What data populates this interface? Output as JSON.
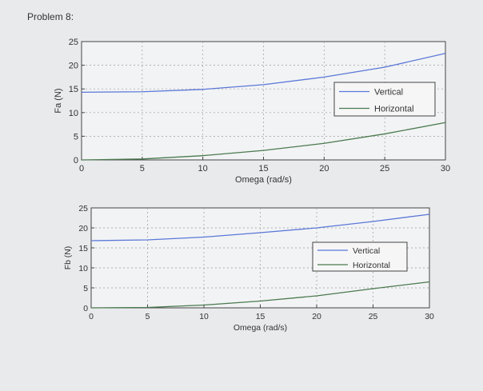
{
  "page": {
    "heading": "Problem 8:"
  },
  "chart_data": [
    {
      "type": "line",
      "ylabel": "Fa (N)",
      "xlabel": "Omega (rad/s)",
      "xlim": [
        0,
        30
      ],
      "ylim": [
        0,
        25
      ],
      "xticks": [
        0,
        5,
        10,
        15,
        20,
        25,
        30
      ],
      "yticks": [
        0,
        5,
        10,
        15,
        20,
        25
      ],
      "grid": true,
      "legend_position": "right",
      "x": [
        0,
        5,
        10,
        15,
        20,
        25,
        30
      ],
      "series": [
        {
          "name": "Vertical",
          "color": "#5a78d8",
          "values": [
            14.3,
            14.4,
            14.9,
            15.9,
            17.5,
            19.6,
            22.5
          ]
        },
        {
          "name": "Horizontal",
          "color": "#4a7a4e",
          "values": [
            0.0,
            0.2,
            0.9,
            2.0,
            3.5,
            5.5,
            7.9
          ]
        }
      ]
    },
    {
      "type": "line",
      "ylabel": "Fb (N)",
      "xlabel": "Omega (rad/s)",
      "xlim": [
        0,
        30
      ],
      "ylim": [
        0,
        25
      ],
      "xticks": [
        0,
        5,
        10,
        15,
        20,
        25,
        30
      ],
      "yticks": [
        0,
        5,
        10,
        15,
        20,
        25
      ],
      "grid": true,
      "legend_position": "right",
      "x": [
        0,
        5,
        10,
        15,
        20,
        25,
        30
      ],
      "series": [
        {
          "name": "Vertical",
          "color": "#5a78d8",
          "values": [
            16.8,
            17.0,
            17.7,
            18.8,
            20.0,
            21.6,
            23.4
          ]
        },
        {
          "name": "Horizontal",
          "color": "#4a7a4e",
          "values": [
            0.0,
            0.1,
            0.7,
            1.7,
            3.0,
            4.8,
            6.5
          ]
        }
      ]
    }
  ]
}
